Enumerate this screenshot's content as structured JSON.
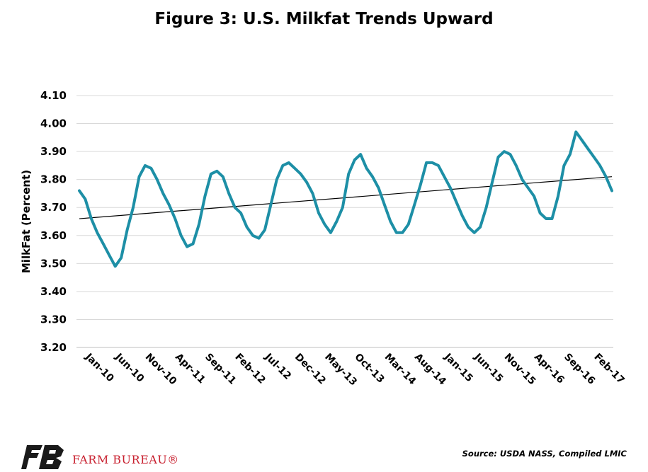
{
  "header": {
    "title": "Figure 3: U.S. Milkfat Trends Upward"
  },
  "footer": {
    "source": "Source: USDA NASS, Compiled LMIC",
    "brand": "FARM BUREAU®",
    "brand_color": "#c8202f"
  },
  "colors": {
    "series": "#1d8fa6",
    "trend": "#000000",
    "grid": "#d9d9d9"
  },
  "chart_data": {
    "type": "line",
    "title": "Figure 3: U.S. Milkfat Trends Upward",
    "xlabel": "",
    "ylabel": "MilkFat (Percent)",
    "ylim": [
      3.2,
      4.1
    ],
    "yticks": [
      "3.20",
      "3.30",
      "3.40",
      "3.50",
      "3.60",
      "3.70",
      "3.80",
      "3.90",
      "4.00",
      "4.10"
    ],
    "xtick_labels": [
      "Jan-10",
      "Jun-10",
      "Nov-10",
      "Apr-11",
      "Sep-11",
      "Feb-12",
      "Jul-12",
      "Dec-12",
      "May-13",
      "Oct-13",
      "Mar-14",
      "Aug-14",
      "Jan-15",
      "Jun-15",
      "Nov-15",
      "Apr-16",
      "Sep-16",
      "Feb-17"
    ],
    "grid": true,
    "x_start": "Jan-10",
    "x_end": "Apr-17",
    "series": [
      {
        "name": "",
        "values": [
          3.76,
          3.73,
          3.66,
          3.61,
          3.57,
          3.53,
          3.49,
          3.52,
          3.62,
          3.7,
          3.81,
          3.85,
          3.84,
          3.8,
          3.75,
          3.71,
          3.66,
          3.6,
          3.56,
          3.57,
          3.64,
          3.74,
          3.82,
          3.83,
          3.81,
          3.75,
          3.7,
          3.68,
          3.63,
          3.6,
          3.59,
          3.62,
          3.71,
          3.8,
          3.85,
          3.86,
          3.84,
          3.82,
          3.79,
          3.75,
          3.68,
          3.64,
          3.61,
          3.65,
          3.7,
          3.82,
          3.87,
          3.89,
          3.84,
          3.81,
          3.77,
          3.71,
          3.65,
          3.61,
          3.61,
          3.64,
          3.71,
          3.78,
          3.86,
          3.86,
          3.85,
          3.81,
          3.77,
          3.72,
          3.67,
          3.63,
          3.61,
          3.63,
          3.7,
          3.79,
          3.88,
          3.9,
          3.89,
          3.85,
          3.8,
          3.77,
          3.74,
          3.68,
          3.66,
          3.66,
          3.74,
          3.85,
          3.89,
          3.97,
          3.94,
          3.91,
          3.88,
          3.85,
          3.81,
          3.76
        ]
      }
    ],
    "trendline": {
      "start": 3.66,
      "end": 3.81
    }
  }
}
